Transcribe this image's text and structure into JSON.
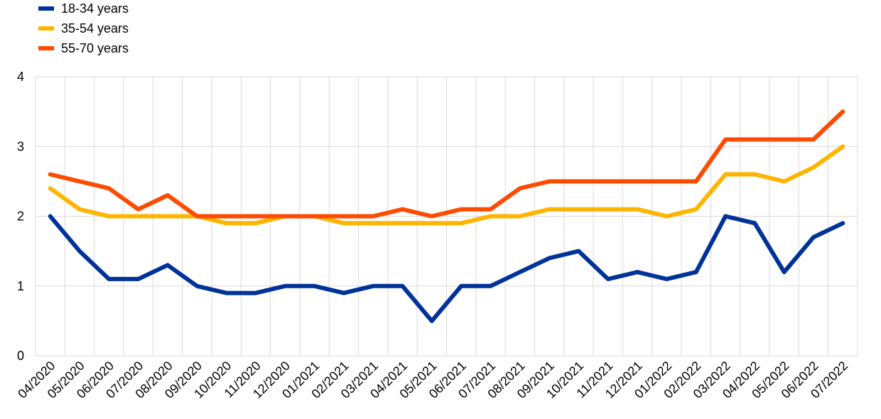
{
  "chart_data": {
    "type": "line",
    "x": [
      "04/2020",
      "05/2020",
      "06/2020",
      "07/2020",
      "08/2020",
      "09/2020",
      "10/2020",
      "11/2020",
      "12/2020",
      "01/2021",
      "02/2021",
      "03/2021",
      "04/2021",
      "05/2021",
      "06/2021",
      "07/2021",
      "08/2021",
      "09/2021",
      "10/2021",
      "11/2021",
      "12/2021",
      "01/2022",
      "02/2022",
      "03/2022",
      "04/2022",
      "05/2022",
      "06/2022",
      "07/2022"
    ],
    "series": [
      {
        "name": "18-34 years",
        "color": "#003299",
        "values": [
          2.0,
          1.5,
          1.1,
          1.1,
          1.3,
          1.0,
          0.9,
          0.9,
          1.0,
          1.0,
          0.9,
          1.0,
          1.0,
          0.5,
          1.0,
          1.0,
          1.2,
          1.4,
          1.5,
          1.1,
          1.2,
          1.1,
          1.2,
          2.0,
          1.9,
          1.2,
          1.7,
          1.9
        ]
      },
      {
        "name": "35-54 years",
        "color": "#FFB400",
        "values": [
          2.4,
          2.1,
          2.0,
          2.0,
          2.0,
          2.0,
          1.9,
          1.9,
          2.0,
          2.0,
          1.9,
          1.9,
          1.9,
          1.9,
          1.9,
          2.0,
          2.0,
          2.1,
          2.1,
          2.1,
          2.1,
          2.0,
          2.1,
          2.6,
          2.6,
          2.5,
          2.7,
          3.0
        ]
      },
      {
        "name": "55-70 years",
        "color": "#FF4B00",
        "values": [
          2.6,
          2.5,
          2.4,
          2.1,
          2.3,
          2.0,
          2.0,
          2.0,
          2.0,
          2.0,
          2.0,
          2.0,
          2.1,
          2.0,
          2.1,
          2.1,
          2.4,
          2.5,
          2.5,
          2.5,
          2.5,
          2.5,
          2.5,
          3.1,
          3.1,
          3.1,
          3.1,
          3.5
        ]
      }
    ],
    "yticks": [
      "0",
      "1",
      "2",
      "3",
      "4"
    ],
    "ylim": [
      0,
      4
    ],
    "grid": true,
    "legend_position": "top-left"
  }
}
